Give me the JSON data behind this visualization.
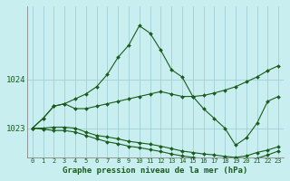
{
  "background_color": "#c8eef0",
  "grid_color": "#a0d0d4",
  "line_color": "#1a5c1a",
  "xlabel": "Graphe pression niveau de la mer (hPa)",
  "yticks": [
    1023,
    1024
  ],
  "xlim": [
    -0.5,
    23.5
  ],
  "ylim": [
    1022.4,
    1025.5
  ],
  "hours": [
    0,
    1,
    2,
    3,
    4,
    5,
    6,
    7,
    8,
    9,
    10,
    11,
    12,
    13,
    14,
    15,
    16,
    17,
    18,
    19,
    20,
    21,
    22,
    23
  ],
  "series1": [
    1023.0,
    1023.2,
    1023.45,
    1023.5,
    1023.6,
    1023.7,
    1023.85,
    1024.1,
    1024.45,
    1024.7,
    1025.1,
    1024.95,
    1024.6,
    1024.2,
    1024.05,
    1023.65,
    1023.4,
    1023.2,
    1023.0,
    1022.65,
    1022.8,
    1023.1,
    1023.55,
    1023.65
  ],
  "series2": [
    1023.0,
    1023.2,
    1023.45,
    1023.5,
    1023.4,
    1023.4,
    1023.45,
    1023.5,
    1023.55,
    1023.6,
    1023.65,
    1023.7,
    1023.75,
    1023.7,
    1023.65,
    1023.65,
    1023.67,
    1023.72,
    1023.78,
    1023.85,
    1023.95,
    1024.05,
    1024.18,
    1024.28
  ],
  "series3": [
    1023.0,
    1023.0,
    1023.02,
    1023.02,
    1023.0,
    1022.92,
    1022.85,
    1022.82,
    1022.78,
    1022.73,
    1022.7,
    1022.67,
    1022.63,
    1022.58,
    1022.53,
    1022.5,
    1022.47,
    1022.45,
    1022.42,
    1022.4,
    1022.43,
    1022.5,
    1022.55,
    1022.62
  ],
  "series4": [
    1023.0,
    1022.98,
    1022.95,
    1022.95,
    1022.92,
    1022.85,
    1022.78,
    1022.72,
    1022.68,
    1022.63,
    1022.6,
    1022.56,
    1022.52,
    1022.47,
    1022.43,
    1022.4,
    1022.37,
    1022.35,
    1022.33,
    1022.3,
    1022.33,
    1022.38,
    1022.45,
    1022.53
  ]
}
